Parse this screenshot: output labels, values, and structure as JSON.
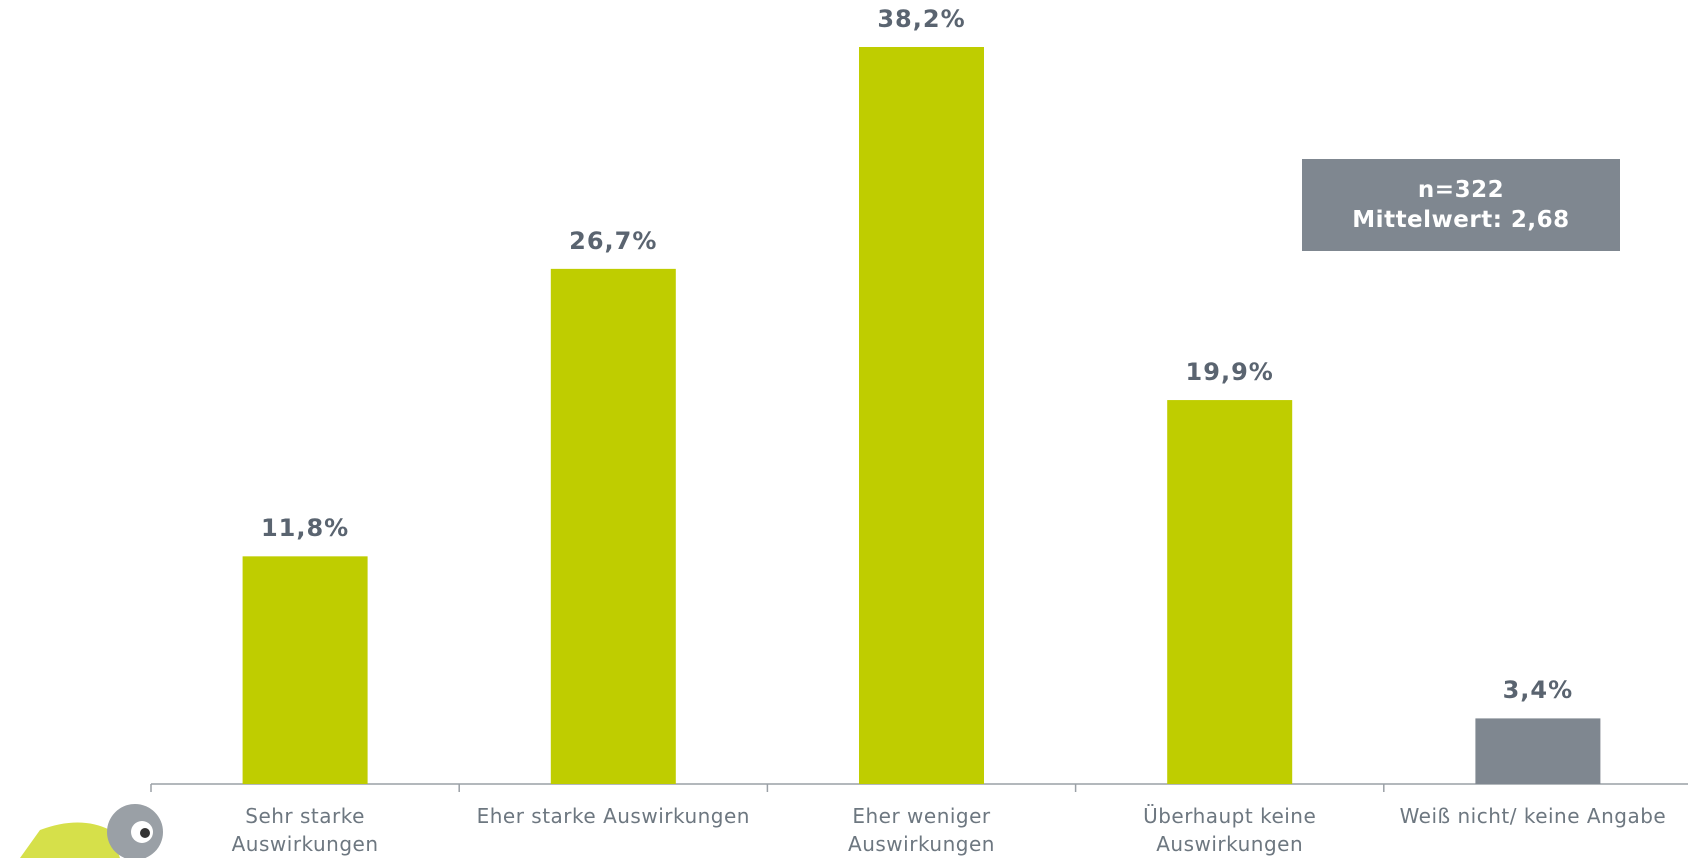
{
  "chart_data": {
    "type": "bar",
    "categories": [
      "Sehr starke\nAuswirkungen",
      "Eher starke Auswirkungen",
      "Eher weniger\nAuswirkungen",
      "Überhaupt keine\nAuswirkungen",
      "Weiß nicht/ keine Angabe"
    ],
    "values": [
      11.8,
      26.7,
      38.2,
      19.9,
      3.4
    ],
    "value_labels": [
      "11,8%",
      "26,7%",
      "38,2%",
      "19,9%",
      "3,4%"
    ],
    "colors": [
      "#bfcd00",
      "#bfcd00",
      "#bfcd00",
      "#bfcd00",
      "#7f8790"
    ],
    "annotations": [
      "n=322",
      "Mittelwert: 2,68"
    ]
  }
}
